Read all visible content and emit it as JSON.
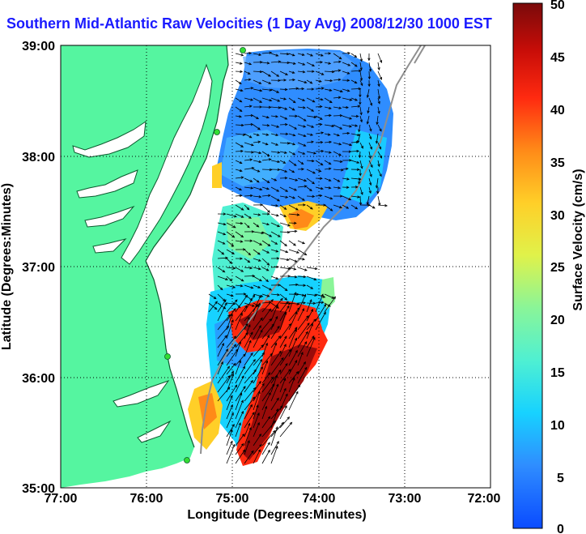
{
  "title": "Southern Mid-Atlantic Raw Velocities (1 Day Avg) 2008/12/30 1000 EST",
  "xlabel": "Longitude (Degrees:Minutes)",
  "ylabel": "Latitude (Degrees:Minutes)",
  "x_ticks": [
    "77:00",
    "76:00",
    "75:00",
    "74:00",
    "73:00",
    "72:00"
  ],
  "y_ticks": [
    "39:00",
    "38:00",
    "37:00",
    "36:00",
    "35:00"
  ],
  "colorbar": {
    "label": "Surface Velocity (cm/s)",
    "ticks": [
      "50",
      "45",
      "40",
      "35",
      "30",
      "25",
      "20",
      "15",
      "10",
      "5",
      "0"
    ],
    "range": [
      0,
      50
    ]
  },
  "colors": {
    "land": "#55f5a0",
    "title": "#1a1aff",
    "station": "#33dd33"
  },
  "x_range": [
    -77,
    -72
  ],
  "y_range": [
    35,
    39
  ]
}
